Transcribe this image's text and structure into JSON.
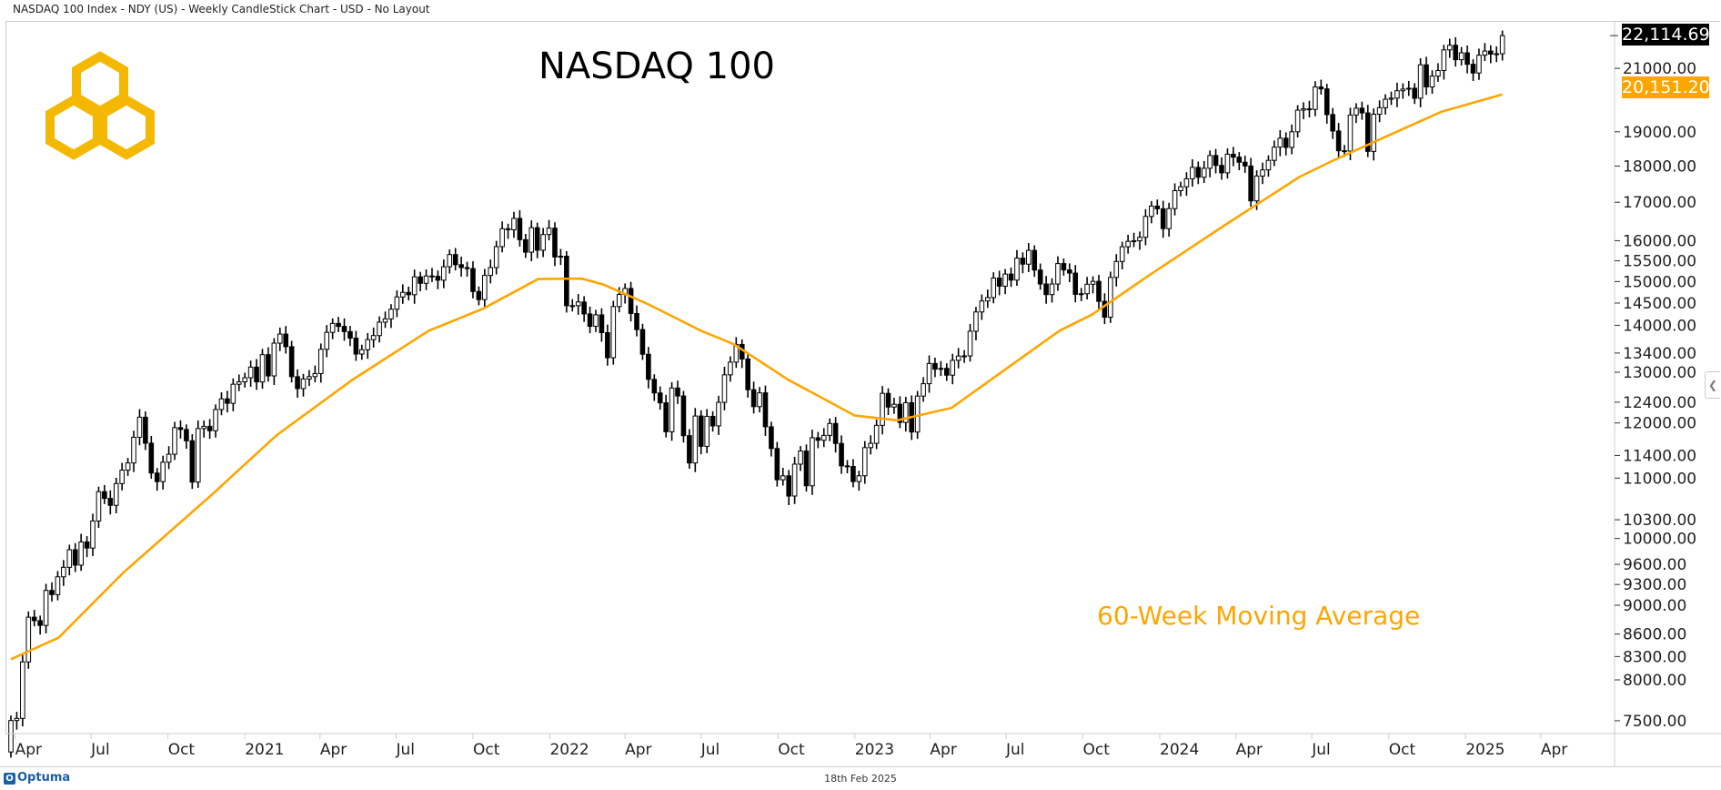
{
  "header": {
    "title": "NASDAQ 100 Index - NDY (US) - Weekly CandleStick Chart - USD - No Layout"
  },
  "footer": {
    "brand": "Optuma",
    "date": "18th Feb 2025"
  },
  "colors": {
    "ma": "#FFA500",
    "logo": "#F5B800",
    "up": "#FFFFFF",
    "down": "#000000"
  },
  "chart_data": {
    "type": "candlestick",
    "title": "NASDAQ 100",
    "annotation": "60-Week Moving Average",
    "y_scale": "log",
    "ylim": [
      7350,
      22600
    ],
    "last_price": "22,114.69",
    "ma_last": "20,151.20",
    "start_date": "2020-03-27",
    "interval_days": 7,
    "first_open": 7140,
    "closes": [
      7503,
      7528,
      8230,
      8832,
      8784,
      8718,
      9213,
      9152,
      9413,
      9555,
      9824,
      9588,
      9946,
      9850,
      10280,
      10767,
      10653,
      10537,
      10905,
      11139,
      11266,
      11732,
      12110,
      11623,
      11088,
      10939,
      11279,
      11422,
      11912,
      11877,
      11667,
      10931,
      11895,
      11937,
      11854,
      12258,
      12465,
      12378,
      12756,
      12805,
      12888,
      13106,
      12803,
      13366,
      12925,
      13611,
      13807,
      13535,
      12909,
      12669,
      12862,
      12910,
      12973,
      13480,
      13845,
      14041,
      13975,
      13860,
      13719,
      13379,
      13470,
      13687,
      13774,
      14069,
      14142,
      14360,
      14640,
      14746,
      14692,
      15112,
      14959,
      15133,
      15125,
      15033,
      15355,
      15653,
      15405,
      15335,
      15310,
      14767,
      14579,
      15146,
      15335,
      15850,
      16304,
      16277,
      16573,
      16025,
      15712,
      16331,
      15761,
      16155,
      16320,
      15593,
      15612,
      14439,
      14440,
      14525,
      14253,
      13977,
      14233,
      13838,
      13301,
      14420,
      14698,
      14838,
      14263,
      13906,
      13375,
      12855,
      12582,
      12387,
      11835,
      12681,
      12522,
      11762,
      11265,
      12132,
      11565,
      12126,
      11945,
      12397,
      12947,
      13209,
      13583,
      13275,
      12647,
      12313,
      12584,
      11928,
      11526,
      10971,
      11039,
      10693,
      11245,
      11480,
      10867,
      11723,
      11677,
      11767,
      11990,
      11618,
      11214,
      11204,
      10940,
      11040,
      11542,
      11620,
      11955,
      12574,
      12305,
      12359,
      12010,
      12390,
      11830,
      12520,
      12767,
      13181,
      13063,
      13080,
      12940,
      13246,
      13337,
      13340,
      13869,
      14298,
      14547,
      14626,
      15084,
      14891,
      15179,
      15035,
      15565,
      15418,
      15757,
      15275,
      14943,
      14694,
      14942,
      15432,
      15278,
      15202,
      14701,
      14715,
      14937,
      15005,
      14539,
      14180,
      15099,
      15483,
      15847,
      15983,
      15997,
      16085,
      16624,
      16898,
      16826,
      16306,
      16832,
      17314,
      17421,
      17642,
      17962,
      17685,
      17937,
      18302,
      18019,
      17808,
      18339,
      18255,
      18108,
      18003,
      17037,
      17718,
      17891,
      18162,
      18546,
      18808,
      18537,
      19000,
      19659,
      19701,
      19683,
      20392,
      20331,
      19523,
      19023,
      18440,
      18430,
      19509,
      19720,
      19575,
      18421,
      19534,
      19736,
      20001,
      20036,
      20271,
      20324,
      20352,
      20033,
      21118,
      20394,
      20744,
      20930,
      21622,
      21780,
      21289,
      21523,
      21135,
      20847,
      21441,
      21582,
      21478,
      21491,
      22114.69
    ],
    "ma_60": [
      [
        "2020-03-27",
        8265
      ],
      [
        "2020-05-23",
        8550
      ],
      [
        "2020-08-09",
        9480
      ],
      [
        "2020-11-22",
        10710
      ],
      [
        "2021-02-08",
        11770
      ],
      [
        "2021-05-10",
        12850
      ],
      [
        "2021-08-09",
        13880
      ],
      [
        "2021-10-13",
        14370
      ],
      [
        "2021-12-18",
        15060
      ],
      [
        "2022-02-08",
        15070
      ],
      [
        "2022-03-06",
        14930
      ],
      [
        "2022-04-27",
        14490
      ],
      [
        "2022-07-01",
        13880
      ],
      [
        "2022-08-09",
        13590
      ],
      [
        "2022-10-13",
        12850
      ],
      [
        "2023-01-01",
        12140
      ],
      [
        "2023-02-21",
        12050
      ],
      [
        "2023-04-27",
        12290
      ],
      [
        "2023-07-01",
        13070
      ],
      [
        "2023-09-03",
        13880
      ],
      [
        "2023-10-12",
        14240
      ],
      [
        "2023-12-17",
        15120
      ],
      [
        "2024-03-17",
        16370
      ],
      [
        "2024-06-16",
        17690
      ],
      [
        "2024-07-25",
        18140
      ],
      [
        "2024-09-28",
        18860
      ],
      [
        "2024-12-03",
        19610
      ],
      [
        "2025-02-14",
        20151.2
      ]
    ],
    "y_ticks": [
      "21000.00",
      "19000.00",
      "18000.00",
      "17000.00",
      "16000.00",
      "15500.00",
      "15000.00",
      "14500.00",
      "14000.00",
      "13400.00",
      "13000.00",
      "12400.00",
      "12000.00",
      "11400.00",
      "11000.00",
      "10300.00",
      "10000.00",
      "9600.00",
      "9300.00",
      "9000.00",
      "8600.00",
      "8300.00",
      "8000.00",
      "7500.00"
    ],
    "x_ticks": [
      [
        "2020-04-01",
        "Apr"
      ],
      [
        "2020-07-01",
        "Jul"
      ],
      [
        "2020-10-01",
        "Oct"
      ],
      [
        "2021-01-01",
        "2021"
      ],
      [
        "2021-04-01",
        "Apr"
      ],
      [
        "2021-07-01",
        "Jul"
      ],
      [
        "2021-10-01",
        "Oct"
      ],
      [
        "2022-01-01",
        "2022"
      ],
      [
        "2022-04-01",
        "Apr"
      ],
      [
        "2022-07-01",
        "Jul"
      ],
      [
        "2022-10-01",
        "Oct"
      ],
      [
        "2023-01-01",
        "2023"
      ],
      [
        "2023-04-01",
        "Apr"
      ],
      [
        "2023-07-01",
        "Jul"
      ],
      [
        "2023-10-01",
        "Oct"
      ],
      [
        "2024-01-01",
        "2024"
      ],
      [
        "2024-04-01",
        "Apr"
      ],
      [
        "2024-07-01",
        "Jul"
      ],
      [
        "2024-10-01",
        "Oct"
      ],
      [
        "2025-01-01",
        "2025"
      ],
      [
        "2025-04-01",
        "Apr"
      ]
    ]
  }
}
